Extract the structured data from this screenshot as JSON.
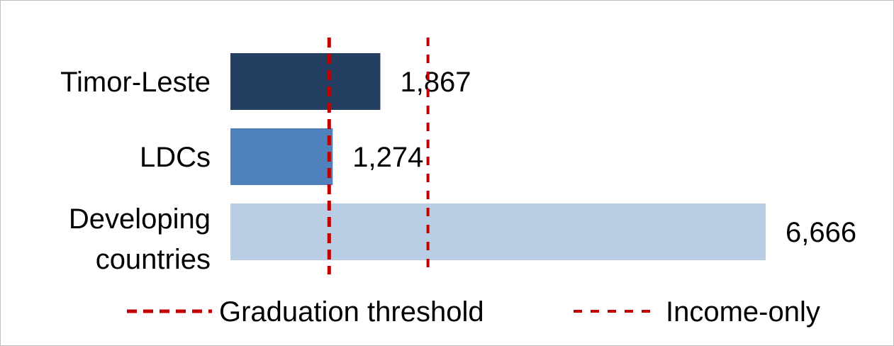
{
  "chart_data": {
    "type": "bar",
    "orientation": "horizontal",
    "categories": [
      "Timor-Leste",
      "LDCs",
      "Developing countries"
    ],
    "values": [
      1867,
      1274,
      6666
    ],
    "value_labels": [
      "1,867",
      "1,274",
      "6,666"
    ],
    "bar_colors": [
      "#243f61",
      "#4f81bd",
      "#b9cde5"
    ],
    "xlim": [
      0,
      6666
    ],
    "grid": false,
    "reference_lines": [
      {
        "name": "Graduation threshold",
        "value": 1230,
        "color": "#c00000",
        "style": "dashed-bold"
      },
      {
        "name": "Income-only",
        "value": 2460,
        "color": "#c00000",
        "style": "dashed"
      }
    ],
    "legend": {
      "position": "bottom",
      "entries": [
        "Graduation threshold",
        "Income-only"
      ]
    }
  }
}
